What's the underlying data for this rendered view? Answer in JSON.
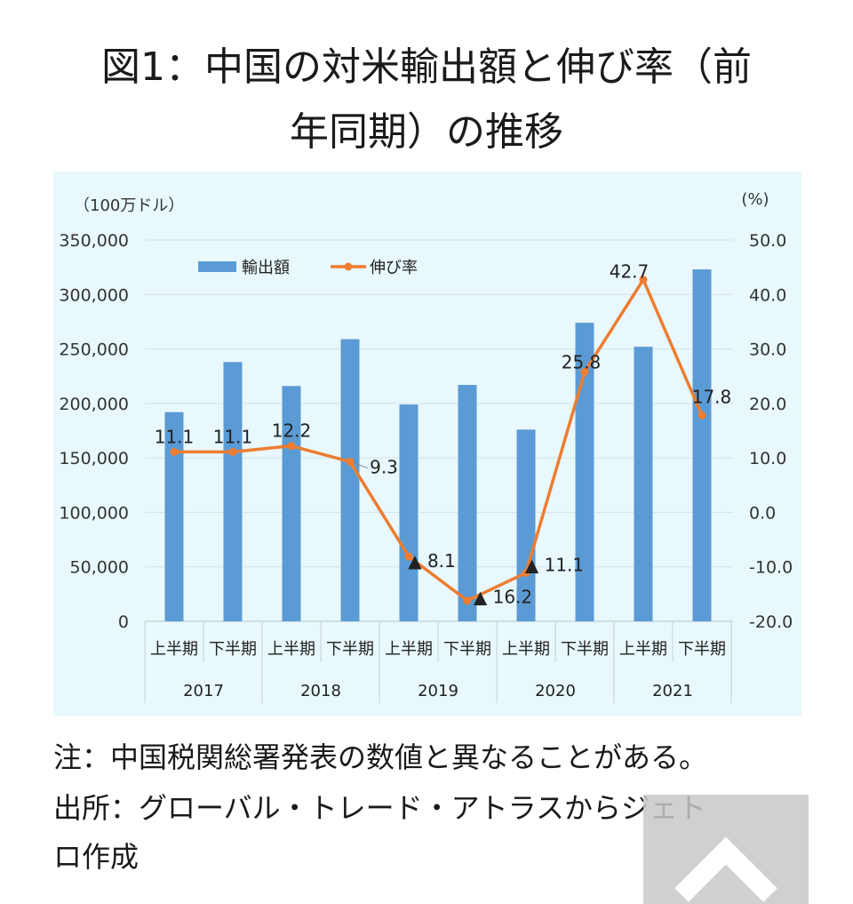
{
  "title_line1": "図1：中国の対米輸出額と伸び率（前",
  "title_line2": "年同期）の推移",
  "notes": {
    "line1": "注：中国税関総署発表の数値と異なることがある。",
    "line2": "出所：グローバル・トレード・アトラスからジェト",
    "line3": "ロ作成"
  },
  "icons": {
    "scroll_top": "chevron-up-icon"
  },
  "chart_data": {
    "type": "bar",
    "y_left_label": "（100万ドル）",
    "y_right_label": "(%)",
    "y_left_lim": [
      0,
      350000
    ],
    "y_left_ticks": [
      "350,000",
      "300,000",
      "250,000",
      "200,000",
      "150,000",
      "100,000",
      "50,000",
      "0"
    ],
    "y_right_lim": [
      -20,
      50
    ],
    "y_right_ticks": [
      "50.0",
      "40.0",
      "30.0",
      "20.0",
      "10.0",
      "0.0",
      "-10.0",
      "-20.0"
    ],
    "categories": [
      "上半期",
      "下半期",
      "上半期",
      "下半期",
      "上半期",
      "下半期",
      "上半期",
      "下半期",
      "上半期",
      "下半期"
    ],
    "years": [
      "2017",
      "2018",
      "2019",
      "2020",
      "2021"
    ],
    "grid": true,
    "legend_position": "top-left",
    "colors": {
      "bar": "#5b9bd5",
      "line": "#ed7d31"
    },
    "series": [
      {
        "name": "輸出額",
        "type": "bar",
        "values": [
          192000,
          238000,
          216000,
          259000,
          199000,
          217000,
          176000,
          274000,
          252000,
          323000
        ]
      },
      {
        "name": "伸び率",
        "type": "line",
        "axis": "right",
        "values": [
          11.1,
          11.1,
          12.2,
          9.3,
          -8.1,
          -16.2,
          -11.1,
          25.8,
          42.7,
          17.8
        ],
        "labels": [
          "11.1",
          "11.1",
          "12.2",
          "9.3",
          "▲ 8.1",
          "▲ 16.2",
          "▲ 11.1",
          "25.8",
          "42.7",
          "17.8"
        ]
      }
    ]
  }
}
